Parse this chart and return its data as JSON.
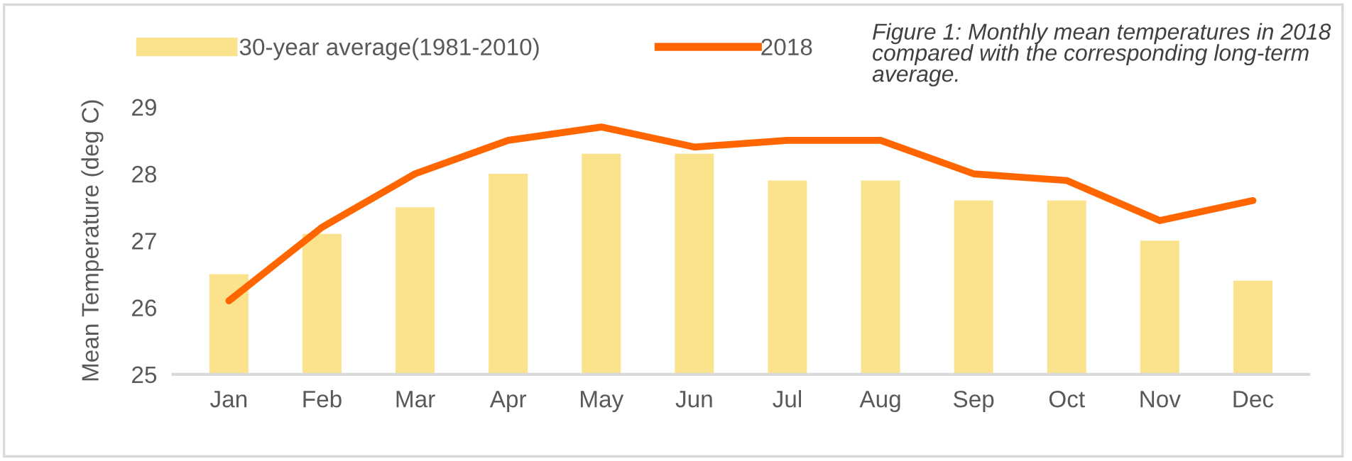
{
  "chart_data": {
    "type": "bar",
    "title": "Figure 1: Monthly mean temperatures in 2018 compared with the corresponding long-term average.",
    "ylabel": "Mean Temperature (deg C)",
    "categories": [
      "Jan",
      "Feb",
      "Mar",
      "Apr",
      "May",
      "Jun",
      "Jul",
      "Aug",
      "Sep",
      "Oct",
      "Nov",
      "Dec"
    ],
    "series": [
      {
        "name": "30-year average(1981-2010)",
        "color": "#fbe38e",
        "values": [
          26.5,
          27.1,
          27.5,
          28.0,
          28.3,
          28.3,
          27.9,
          27.9,
          27.6,
          27.6,
          27.0,
          26.4
        ]
      },
      {
        "name": "2018",
        "type": "line",
        "color": "#ff6600",
        "values": [
          26.1,
          27.2,
          28.0,
          28.5,
          28.7,
          28.4,
          28.5,
          28.5,
          28.0,
          27.9,
          27.3,
          27.6
        ]
      }
    ],
    "ylim": [
      25,
      29
    ],
    "yticks": [
      25,
      26,
      27,
      28,
      29
    ],
    "grid": false,
    "legend": "top left"
  }
}
